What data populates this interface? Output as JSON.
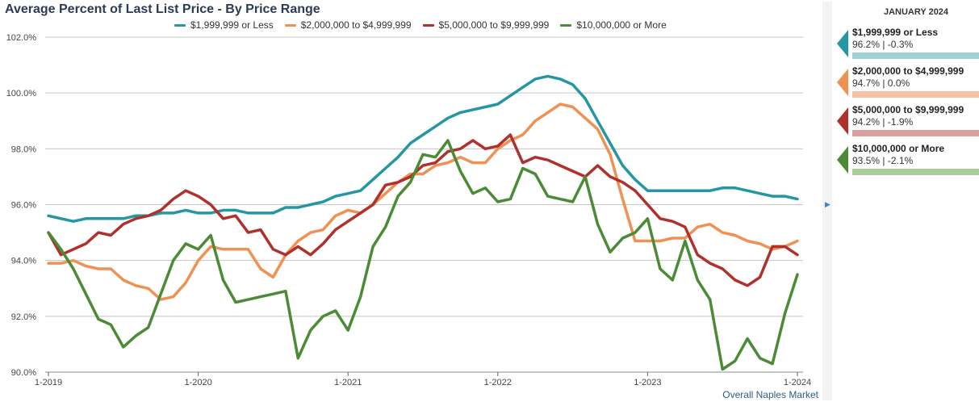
{
  "title": "Average Percent of Last List Price - By Price Range",
  "footnote": "Overall Naples Market",
  "panel": {
    "header": "JANUARY 2024",
    "cards": [
      {
        "name": "$1,999,999 or Less",
        "value": "96.2% | -0.3%",
        "color": "#2596a3",
        "light": "#9fd0d5"
      },
      {
        "name": "$2,000,000 to $4,999,999",
        "value": "94.7% | 0.0%",
        "color": "#ef9152",
        "light": "#f5c2a4"
      },
      {
        "name": "$5,000,000 to $9,999,999",
        "value": "94.2% | -1.9%",
        "color": "#b0302c",
        "light": "#d9a0a0"
      },
      {
        "name": "$10,000,000 or More",
        "value": "93.5% | -2.1%",
        "color": "#4b8b35",
        "light": "#a9cc9a"
      }
    ]
  },
  "chart_data": {
    "type": "line",
    "title": "Average Percent of Last List Price - By Price Range",
    "x_start": "2019-01",
    "x_end": "2024-01",
    "x_ticks": [
      "1-2019",
      "1-2020",
      "1-2021",
      "1-2022",
      "1-2023",
      "1-2024"
    ],
    "y_ticks": [
      "90.0%",
      "92.0%",
      "94.0%",
      "96.0%",
      "98.0%",
      "100.0%",
      "102.0%"
    ],
    "ylim": [
      90,
      102
    ],
    "grid": true,
    "legend": "top",
    "series": [
      {
        "name": "$1,999,999 or Less",
        "color": "#2596a3",
        "values": [
          95.6,
          95.5,
          95.4,
          95.5,
          95.5,
          95.5,
          95.5,
          95.6,
          95.6,
          95.7,
          95.7,
          95.8,
          95.7,
          95.7,
          95.8,
          95.8,
          95.7,
          95.7,
          95.7,
          95.9,
          95.9,
          96.0,
          96.1,
          96.3,
          96.4,
          96.5,
          96.9,
          97.3,
          97.7,
          98.2,
          98.5,
          98.8,
          99.1,
          99.3,
          99.4,
          99.5,
          99.6,
          99.9,
          100.2,
          100.5,
          100.6,
          100.5,
          100.3,
          99.8,
          99.0,
          98.2,
          97.4,
          96.9,
          96.5,
          96.5,
          96.5,
          96.5,
          96.5,
          96.5,
          96.6,
          96.6,
          96.5,
          96.4,
          96.3,
          96.3,
          96.2
        ]
      },
      {
        "name": "$2,000,000 to $4,999,999",
        "color": "#ef9152",
        "values": [
          93.9,
          93.9,
          94.0,
          93.8,
          93.7,
          93.7,
          93.3,
          93.1,
          93.0,
          92.6,
          92.7,
          93.2,
          94.0,
          94.5,
          94.4,
          94.4,
          94.4,
          93.7,
          93.4,
          94.2,
          94.7,
          95.0,
          95.1,
          95.6,
          95.8,
          95.7,
          96.0,
          96.4,
          96.8,
          97.1,
          97.1,
          97.4,
          97.5,
          97.7,
          97.5,
          97.5,
          98.0,
          98.3,
          98.5,
          99.0,
          99.3,
          99.6,
          99.5,
          99.1,
          98.7,
          97.8,
          96.2,
          94.7,
          94.7,
          94.7,
          94.8,
          94.8,
          95.2,
          95.3,
          95.0,
          94.9,
          94.7,
          94.6,
          94.4,
          94.5,
          94.7
        ]
      },
      {
        "name": "$5,000,000 to $9,999,999",
        "color": "#b0302c",
        "values": [
          95.0,
          94.2,
          94.4,
          94.6,
          95.0,
          94.9,
          95.3,
          95.5,
          95.6,
          95.8,
          96.2,
          96.5,
          96.3,
          96.0,
          95.5,
          95.6,
          95.0,
          95.1,
          94.4,
          94.2,
          94.5,
          94.2,
          94.6,
          95.1,
          95.4,
          95.7,
          96.0,
          96.7,
          96.8,
          97.0,
          97.4,
          97.5,
          97.9,
          98.0,
          98.3,
          98.0,
          98.1,
          98.5,
          97.5,
          97.7,
          97.6,
          97.4,
          97.2,
          97.0,
          97.4,
          97.0,
          96.8,
          96.5,
          96.0,
          95.5,
          95.4,
          95.2,
          94.2,
          93.9,
          93.7,
          93.3,
          93.1,
          93.4,
          94.5,
          94.5,
          94.2
        ]
      },
      {
        "name": "$10,000,000 or More",
        "color": "#4b8b35",
        "values": [
          95.0,
          94.4,
          93.7,
          92.8,
          91.9,
          91.7,
          90.9,
          91.3,
          91.6,
          92.8,
          94.0,
          94.6,
          94.4,
          94.9,
          93.3,
          92.5,
          92.6,
          92.7,
          92.8,
          92.9,
          90.5,
          91.5,
          92.0,
          92.2,
          91.5,
          92.7,
          94.5,
          95.2,
          96.3,
          96.8,
          97.8,
          97.7,
          98.3,
          97.2,
          96.4,
          96.6,
          96.1,
          96.2,
          97.3,
          97.1,
          96.3,
          96.2,
          96.1,
          97.0,
          95.3,
          94.3,
          94.8,
          95.0,
          95.5,
          93.7,
          93.3,
          94.7,
          93.3,
          92.6,
          90.1,
          90.4,
          91.2,
          90.5,
          90.3,
          92.1,
          93.5
        ]
      }
    ]
  }
}
